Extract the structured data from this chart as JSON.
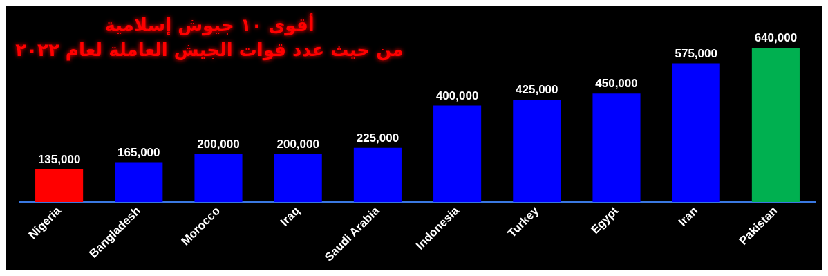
{
  "chart_data": {
    "type": "bar",
    "title": "أقوى ١٠ جيوش إسلامية",
    "subtitle": "من حيث عدد قوات الجيش العاملة لعام ٢٠٢٢",
    "categories": [
      "Nigeria",
      "Bangladesh",
      "Morocco",
      "Iraq",
      "Saudi Arabia",
      "Indonesia",
      "Turkey",
      "Egypt",
      "Iran",
      "Pakistan"
    ],
    "values": [
      135000,
      165000,
      200000,
      200000,
      225000,
      400000,
      425000,
      450000,
      575000,
      640000
    ],
    "value_labels": [
      "135,000",
      "165,000",
      "200,000",
      "200,000",
      "225,000",
      "400,000",
      "425,000",
      "450,000",
      "575,000",
      "640,000"
    ],
    "colors": [
      "#ff0000",
      "#0000ff",
      "#0000ff",
      "#0000ff",
      "#0000ff",
      "#0000ff",
      "#0000ff",
      "#0000ff",
      "#0000ff",
      "#00b050"
    ]
  }
}
